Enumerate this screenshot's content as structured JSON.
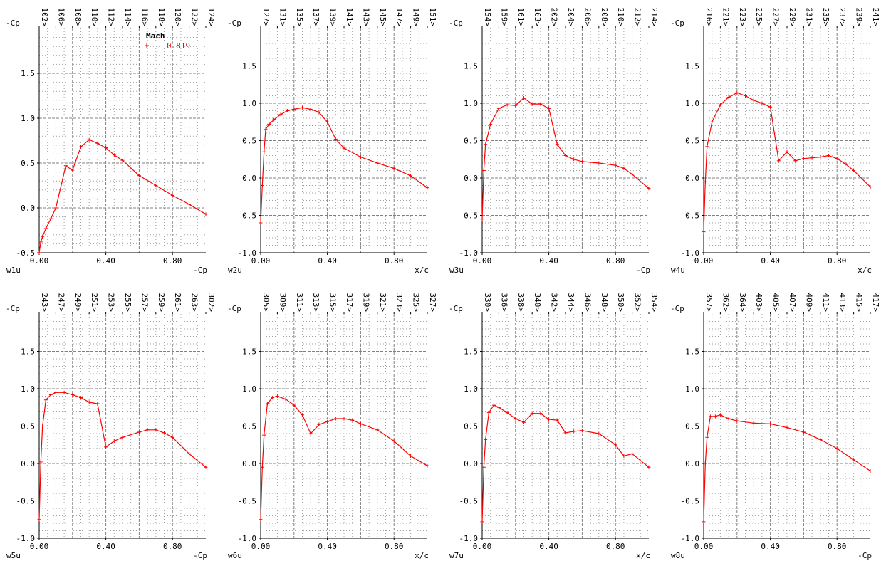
{
  "colors": {
    "series": "#ff0000",
    "axis": "#000000",
    "grid_major": "#808080",
    "grid_minor": "#a0a0a0"
  },
  "legend": {
    "title": "Mach",
    "marker": "+",
    "value": "0.819"
  },
  "chart_data": [
    {
      "type": "line",
      "panel_label": "w1u",
      "ylabel": "-Cp",
      "xlabel": "-Cp",
      "xlim": [
        0,
        1
      ],
      "ylim": [
        -0.5,
        2.0
      ],
      "y_ticks": [
        "-0.5",
        "0.0",
        "0.5",
        "1.0",
        "1.5"
      ],
      "x_ticks": [
        "0.00",
        "0.40",
        "0.80"
      ],
      "top_labels": [
        "102>",
        "106>",
        "108>",
        "110>",
        "112>",
        "114>",
        "116>",
        "118>",
        "120>",
        "122>",
        "124>"
      ],
      "series": [
        {
          "x": [
            0,
            0.01,
            0.02,
            0.04,
            0.07,
            0.1,
            0.16,
            0.2,
            0.25,
            0.3,
            0.35,
            0.4,
            0.45,
            0.5,
            0.6,
            0.7,
            0.8,
            0.9,
            1.0
          ],
          "y": [
            -0.5,
            -0.38,
            -0.32,
            -0.23,
            -0.12,
            0.0,
            0.47,
            0.42,
            0.68,
            0.76,
            0.72,
            0.67,
            0.59,
            0.53,
            0.36,
            0.25,
            0.14,
            0.04,
            -0.07
          ]
        }
      ]
    },
    {
      "type": "line",
      "panel_label": "w2u",
      "ylabel": "-Cp",
      "xlabel": "x/c",
      "xlim": [
        0,
        1
      ],
      "ylim": [
        -1.0,
        2.0
      ],
      "y_ticks": [
        "-1.0",
        "-0.5",
        "0.0",
        "0.5",
        "1.0",
        "1.5"
      ],
      "x_ticks": [
        "0.00",
        "0.40",
        "0.80"
      ],
      "top_labels": [
        "127>",
        "131>",
        "135>",
        "137>",
        "139>",
        "141>",
        "143>",
        "145>",
        "147>",
        "149>",
        "151>"
      ],
      "series": [
        {
          "x": [
            0,
            0.01,
            0.02,
            0.03,
            0.05,
            0.08,
            0.12,
            0.16,
            0.2,
            0.25,
            0.3,
            0.35,
            0.4,
            0.45,
            0.5,
            0.6,
            0.7,
            0.8,
            0.9,
            1.0
          ],
          "y": [
            -0.6,
            -0.1,
            0.35,
            0.65,
            0.72,
            0.78,
            0.85,
            0.9,
            0.92,
            0.94,
            0.92,
            0.88,
            0.75,
            0.52,
            0.4,
            0.28,
            0.2,
            0.13,
            0.03,
            -0.13
          ]
        }
      ]
    },
    {
      "type": "line",
      "panel_label": "w3u",
      "ylabel": "-Cp",
      "xlabel": "-Cp",
      "xlim": [
        0,
        1
      ],
      "ylim": [
        -1.0,
        2.0
      ],
      "y_ticks": [
        "-1.0",
        "-0.5",
        "0.0",
        "0.5",
        "1.0",
        "1.5"
      ],
      "x_ticks": [
        "0.00",
        "0.40",
        "0.80"
      ],
      "top_labels": [
        "154>",
        "159>",
        "161>",
        "163>",
        "202>",
        "204>",
        "206>",
        "208>",
        "210>",
        "212>",
        "214>"
      ],
      "series": [
        {
          "x": [
            0,
            0.01,
            0.02,
            0.05,
            0.1,
            0.15,
            0.2,
            0.25,
            0.3,
            0.35,
            0.4,
            0.45,
            0.5,
            0.55,
            0.6,
            0.7,
            0.8,
            0.85,
            0.9,
            1.0
          ],
          "y": [
            -0.55,
            0.1,
            0.45,
            0.72,
            0.93,
            0.98,
            0.97,
            1.07,
            0.99,
            0.99,
            0.93,
            0.45,
            0.3,
            0.25,
            0.22,
            0.2,
            0.17,
            0.13,
            0.05,
            -0.14
          ]
        }
      ]
    },
    {
      "type": "line",
      "panel_label": "w4u",
      "ylabel": "-Cp",
      "xlabel": "x/c",
      "xlim": [
        0,
        1
      ],
      "ylim": [
        -1.0,
        2.0
      ],
      "y_ticks": [
        "-1.0",
        "-0.5",
        "0.0",
        "0.5",
        "1.0",
        "1.5"
      ],
      "x_ticks": [
        "0.00",
        "0.40",
        "0.80"
      ],
      "top_labels": [
        "216>",
        "221>",
        "223>",
        "225>",
        "227>",
        "229>",
        "231>",
        "235>",
        "237>",
        "239>",
        "241>"
      ],
      "series": [
        {
          "x": [
            0,
            0.01,
            0.02,
            0.05,
            0.1,
            0.15,
            0.2,
            0.25,
            0.3,
            0.35,
            0.4,
            0.45,
            0.5,
            0.55,
            0.6,
            0.65,
            0.7,
            0.75,
            0.8,
            0.85,
            0.9,
            1.0
          ],
          "y": [
            -0.72,
            -0.05,
            0.42,
            0.75,
            0.98,
            1.08,
            1.14,
            1.1,
            1.04,
            1.0,
            0.95,
            0.23,
            0.35,
            0.23,
            0.26,
            0.27,
            0.28,
            0.3,
            0.26,
            0.19,
            0.1,
            -0.12
          ]
        }
      ]
    },
    {
      "type": "line",
      "panel_label": "w5u",
      "ylabel": "-Cp",
      "xlabel": "-Cp",
      "xlim": [
        0,
        1
      ],
      "ylim": [
        -1.0,
        2.0
      ],
      "y_ticks": [
        "-1.0",
        "-0.5",
        "0.0",
        "0.5",
        "1.0",
        "1.5"
      ],
      "x_ticks": [
        "0.00",
        "0.40",
        "0.80"
      ],
      "top_labels": [
        "243>",
        "247>",
        "249>",
        "251>",
        "253>",
        "255>",
        "257>",
        "259>",
        "261>",
        "263>",
        "302>"
      ],
      "series": [
        {
          "x": [
            0,
            0.01,
            0.02,
            0.04,
            0.07,
            0.1,
            0.15,
            0.2,
            0.25,
            0.3,
            0.35,
            0.4,
            0.45,
            0.5,
            0.6,
            0.65,
            0.7,
            0.75,
            0.8,
            0.9,
            1.0
          ],
          "y": [
            -0.75,
            0.02,
            0.5,
            0.85,
            0.92,
            0.95,
            0.95,
            0.92,
            0.88,
            0.82,
            0.8,
            0.22,
            0.3,
            0.35,
            0.42,
            0.45,
            0.45,
            0.41,
            0.35,
            0.13,
            -0.05
          ]
        }
      ]
    },
    {
      "type": "line",
      "panel_label": "w6u",
      "ylabel": "-Cp",
      "xlabel": "x/c",
      "xlim": [
        0,
        1
      ],
      "ylim": [
        -1.0,
        2.0
      ],
      "y_ticks": [
        "-1.0",
        "-0.5",
        "0.0",
        "0.5",
        "1.0",
        "1.5"
      ],
      "x_ticks": [
        "0.00",
        "0.40",
        "0.80"
      ],
      "top_labels": [
        "305>",
        "309>",
        "311>",
        "313>",
        "315>",
        "317>",
        "319>",
        "321>",
        "323>",
        "325>",
        "327>"
      ],
      "series": [
        {
          "x": [
            0,
            0.01,
            0.02,
            0.04,
            0.07,
            0.1,
            0.15,
            0.2,
            0.25,
            0.3,
            0.35,
            0.4,
            0.45,
            0.5,
            0.55,
            0.6,
            0.7,
            0.8,
            0.9,
            1.0
          ],
          "y": [
            -0.75,
            -0.05,
            0.38,
            0.8,
            0.88,
            0.9,
            0.86,
            0.78,
            0.65,
            0.4,
            0.52,
            0.56,
            0.6,
            0.6,
            0.58,
            0.53,
            0.45,
            0.3,
            0.1,
            -0.03
          ]
        }
      ]
    },
    {
      "type": "line",
      "panel_label": "w7u",
      "ylabel": "-Cp",
      "xlabel": "x/c",
      "xlim": [
        0,
        1
      ],
      "ylim": [
        -1.0,
        2.0
      ],
      "y_ticks": [
        "-1.0",
        "-0.5",
        "0.0",
        "0.5",
        "1.0",
        "1.5"
      ],
      "x_ticks": [
        "0.00",
        "0.40",
        "0.80"
      ],
      "top_labels": [
        "330>",
        "336>",
        "338>",
        "340>",
        "342>",
        "344>",
        "346>",
        "348>",
        "350>",
        "352>",
        "354>"
      ],
      "series": [
        {
          "x": [
            0,
            0.01,
            0.02,
            0.04,
            0.07,
            0.1,
            0.15,
            0.2,
            0.25,
            0.3,
            0.35,
            0.4,
            0.45,
            0.5,
            0.55,
            0.6,
            0.7,
            0.8,
            0.85,
            0.9,
            1.0
          ],
          "y": [
            -0.78,
            -0.05,
            0.32,
            0.68,
            0.78,
            0.75,
            0.68,
            0.6,
            0.55,
            0.67,
            0.67,
            0.59,
            0.58,
            0.41,
            0.43,
            0.44,
            0.4,
            0.25,
            0.1,
            0.13,
            -0.05
          ]
        }
      ]
    },
    {
      "type": "line",
      "panel_label": "w8u",
      "ylabel": "-Cp",
      "xlabel": "-Cp",
      "xlim": [
        0,
        1
      ],
      "ylim": [
        -1.0,
        2.0
      ],
      "y_ticks": [
        "-1.0",
        "-0.5",
        "0.0",
        "0.5",
        "1.0",
        "1.5"
      ],
      "x_ticks": [
        "0.00",
        "0.40",
        "0.80"
      ],
      "top_labels": [
        "357>",
        "362>",
        "364>",
        "403>",
        "405>",
        "407>",
        "409>",
        "411>",
        "413>",
        "415>",
        "417>"
      ],
      "series": [
        {
          "x": [
            0,
            0.01,
            0.02,
            0.04,
            0.07,
            0.1,
            0.15,
            0.2,
            0.3,
            0.4,
            0.5,
            0.6,
            0.7,
            0.8,
            0.9,
            1.0
          ],
          "y": [
            -0.78,
            0.0,
            0.35,
            0.63,
            0.63,
            0.65,
            0.6,
            0.57,
            0.54,
            0.53,
            0.48,
            0.42,
            0.32,
            0.2,
            0.05,
            -0.1
          ]
        }
      ]
    }
  ]
}
